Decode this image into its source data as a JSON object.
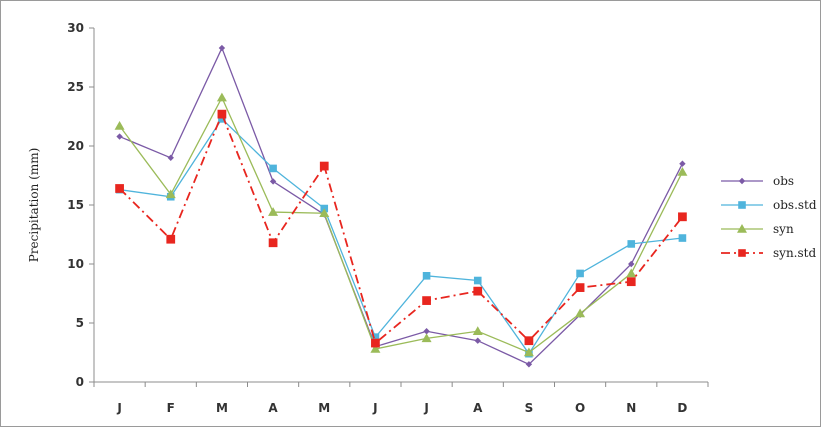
{
  "chart_data": {
    "type": "line",
    "title": "",
    "xlabel": "",
    "ylabel": "Precipitation (mm)",
    "categories": [
      "J",
      "F",
      "M",
      "A",
      "M",
      "J",
      "J",
      "A",
      "S",
      "O",
      "N",
      "D"
    ],
    "ylim": [
      0,
      30
    ],
    "yticks": [
      0,
      5,
      10,
      15,
      20,
      25,
      30
    ],
    "grid": false,
    "legend_position": "right",
    "series": [
      {
        "name": "obs",
        "color": "#7b5aa6",
        "marker": "diamond",
        "dash": "solid",
        "values": [
          20.8,
          19.0,
          28.3,
          17.0,
          14.2,
          3.0,
          4.3,
          3.5,
          1.5,
          5.7,
          10.0,
          18.5
        ]
      },
      {
        "name": "obs.std",
        "color": "#4fb4dc",
        "marker": "square",
        "dash": "solid",
        "values": [
          16.3,
          15.7,
          22.3,
          18.1,
          14.7,
          3.8,
          9.0,
          8.6,
          2.4,
          9.2,
          11.7,
          12.2
        ]
      },
      {
        "name": "syn",
        "color": "#9bbb59",
        "marker": "triangle",
        "dash": "solid",
        "values": [
          21.7,
          15.9,
          24.1,
          14.4,
          14.3,
          2.8,
          3.7,
          4.3,
          2.5,
          5.8,
          9.2,
          17.8
        ]
      },
      {
        "name": "syn.std",
        "color": "#e8261f",
        "marker": "square",
        "dash": "dashdot",
        "values": [
          16.4,
          12.1,
          22.7,
          11.8,
          18.3,
          3.3,
          6.9,
          7.7,
          3.5,
          8.0,
          8.5,
          14.0
        ]
      }
    ]
  }
}
